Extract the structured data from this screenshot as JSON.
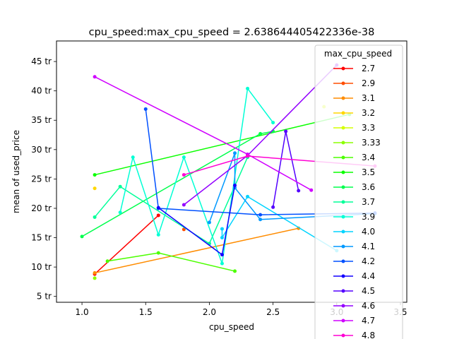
{
  "chart_data": {
    "type": "line",
    "title": "cpu_speed:max_cpu_speed = 2.638644405422336e-38",
    "xlabel": "cpu_speed",
    "ylabel": "mean of used_price",
    "xlim": [
      0.8,
      3.55
    ],
    "ylim": [
      4.0,
      48.5
    ],
    "x_ticks": [
      1.0,
      1.5,
      2.0,
      2.5,
      3.0,
      3.5
    ],
    "x_tick_labels": [
      "1.0",
      "1.5",
      "2.0",
      "2.5",
      "3.0",
      "3.5"
    ],
    "y_ticks": [
      5,
      10,
      15,
      20,
      25,
      30,
      35,
      40,
      45
    ],
    "y_tick_labels": [
      "5 tr",
      "10 tr",
      "15 tr",
      "20 tr",
      "25 tr",
      "30 tr",
      "35 tr",
      "40 tr",
      "45 tr"
    ],
    "grid": false,
    "legend": {
      "title": "max_cpu_speed",
      "placement": "right"
    },
    "series": [
      {
        "name": "2.7",
        "color": "#ff0000",
        "points": [
          [
            1.1,
            8.8
          ],
          [
            1.6,
            18.8
          ]
        ]
      },
      {
        "name": "2.9",
        "color": "#ff4d00",
        "points": [
          [
            1.8,
            16.4
          ]
        ]
      },
      {
        "name": "3.1",
        "color": "#ff8c00",
        "points": [
          [
            1.1,
            9.0
          ],
          [
            2.7,
            16.6
          ]
        ]
      },
      {
        "name": "3.2",
        "color": "#ffd700",
        "points": [
          [
            1.1,
            23.4
          ]
        ]
      },
      {
        "name": "3.3",
        "color": "#d4ff00",
        "points": [
          [
            2.9,
            37.3
          ]
        ]
      },
      {
        "name": "3.33",
        "color": "#8cff00",
        "points": [
          [
            1.1,
            8.1
          ]
        ]
      },
      {
        "name": "3.4",
        "color": "#4cff00",
        "points": [
          [
            1.2,
            11.0
          ],
          [
            1.6,
            12.4
          ],
          [
            2.2,
            9.3
          ]
        ]
      },
      {
        "name": "3.5",
        "color": "#0aff00",
        "points": [
          [
            1.1,
            25.7
          ],
          [
            3.1,
            36.0
          ]
        ]
      },
      {
        "name": "3.6",
        "color": "#00ff4d",
        "points": [
          [
            1.0,
            15.2
          ],
          [
            2.4,
            32.7
          ],
          [
            2.5,
            33.1
          ]
        ]
      },
      {
        "name": "3.7",
        "color": "#00ff99",
        "points": [
          [
            1.1,
            18.5
          ],
          [
            1.3,
            23.7
          ],
          [
            2.0,
            14.0
          ],
          [
            2.3,
            28.7
          ]
        ]
      },
      {
        "name": "3.9",
        "color": "#00ffd5",
        "points": [
          [
            1.3,
            19.3
          ],
          [
            1.4,
            28.7
          ],
          [
            1.6,
            15.5
          ],
          [
            1.8,
            28.7
          ],
          [
            2.1,
            10.6
          ],
          [
            2.3,
            40.4
          ],
          [
            2.5,
            34.6
          ]
        ]
      },
      {
        "name": "4.0",
        "color": "#00d4ff",
        "points": [
          [
            2.1,
            16.5
          ],
          [
            2.1,
            15.0
          ],
          [
            2.3,
            22.0
          ],
          [
            3.0,
            12.8
          ]
        ]
      },
      {
        "name": "4.1",
        "color": "#0099ff",
        "points": [
          [
            2.0,
            17.6
          ],
          [
            2.2,
            29.4
          ],
          [
            2.2,
            23.5
          ],
          [
            2.4,
            18.1
          ],
          [
            3.3,
            19.1
          ]
        ]
      },
      {
        "name": "4.2",
        "color": "#0050ff",
        "points": [
          [
            1.5,
            36.9
          ],
          [
            1.6,
            20.0
          ],
          [
            2.4,
            18.9
          ],
          [
            3.3,
            19.2
          ]
        ]
      },
      {
        "name": "4.4",
        "color": "#1200ff",
        "points": [
          [
            1.6,
            20.1
          ],
          [
            2.1,
            12.1
          ],
          [
            2.2,
            23.9
          ]
        ]
      },
      {
        "name": "4.5",
        "color": "#5300ff",
        "points": [
          [
            2.5,
            20.2
          ],
          [
            2.6,
            33.1
          ],
          [
            2.7,
            23.0
          ]
        ]
      },
      {
        "name": "4.6",
        "color": "#9300ff",
        "points": [
          [
            1.8,
            20.6
          ],
          [
            2.3,
            29.0
          ],
          [
            3.0,
            44.4
          ]
        ]
      },
      {
        "name": "4.7",
        "color": "#d000ff",
        "points": [
          [
            1.1,
            42.4
          ],
          [
            2.3,
            29.2
          ],
          [
            2.8,
            23.1
          ]
        ]
      },
      {
        "name": "4.8",
        "color": "#ff00d4",
        "points": [
          [
            1.8,
            25.7
          ],
          [
            2.3,
            28.9
          ],
          [
            3.3,
            27.2
          ]
        ]
      }
    ]
  }
}
